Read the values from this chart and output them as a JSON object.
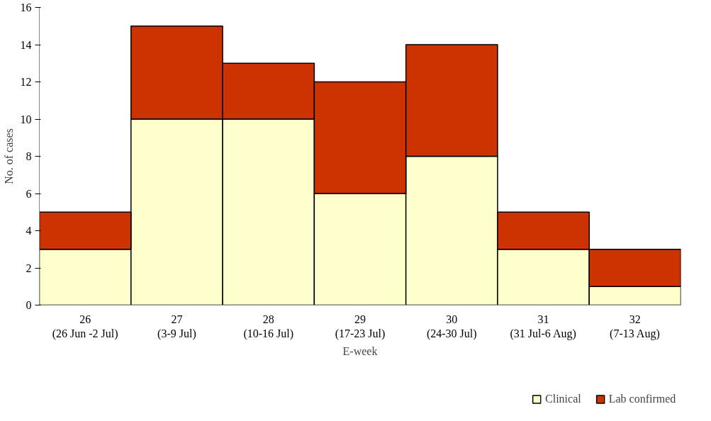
{
  "chart_data": {
    "type": "bar",
    "stacked": true,
    "xlabel": "E-week",
    "ylabel": "No. of cases",
    "categories": [
      "26\n(26 Jun -2 Jul)",
      "27\n(3-9 Jul)",
      "28\n(10-16 Jul)",
      "29\n(17-23 Jul)",
      "30\n(24-30 Jul)",
      "31\n(31 Jul-6 Aug)",
      "32\n(7-13 Aug)"
    ],
    "series": [
      {
        "name": "Clinical",
        "color": "#ffffcc",
        "values": [
          3,
          10,
          10,
          6,
          8,
          3,
          1
        ]
      },
      {
        "name": "Lab confirmed",
        "color": "#cc3300",
        "values": [
          2,
          5,
          3,
          6,
          6,
          2,
          2
        ]
      }
    ],
    "ylim": [
      0,
      16
    ],
    "yticks": [
      0,
      2,
      4,
      6,
      8,
      10,
      12,
      14,
      16
    ],
    "grid": false,
    "legend": "bottom"
  }
}
